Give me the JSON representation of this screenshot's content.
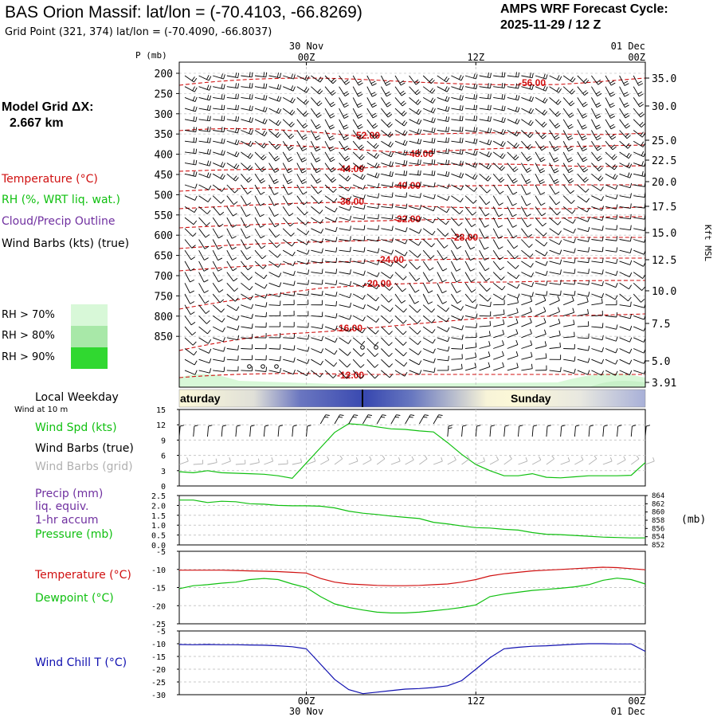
{
  "header": {
    "title": "BAS Orion Massif:  lat/lon = (-70.4103, -66.8269)",
    "subtitle": "Grid Point (321, 374) lat/lon = (-70.4090, -66.8037)",
    "cycle_label": "AMPS WRF Forecast Cycle:",
    "cycle_value": "2025-11-29 / 12  Z",
    "grid_label": "Model Grid ΔX:",
    "grid_value": "2.667 km"
  },
  "legend": {
    "temperature": "Temperature (°C)",
    "rh": "RH (%, WRT liq. wat.)",
    "cloud": "Cloud/Precip Outline",
    "wind": "Wind Barbs (kts) (true)",
    "rh70": "RH > 70%",
    "rh80": "RH > 80%",
    "rh90": "RH > 90%",
    "weekday": "Local Weekday",
    "wind10": "Wind at 10 m",
    "wspd": "Wind Spd (kts)",
    "wbarb_true": "Wind Barbs (true)",
    "wbarb_grid": "Wind Barbs (grid)",
    "precip1": "Precip (mm)",
    "precip2": "liq. equiv.",
    "precip3": "1-hr accum",
    "pressure": "Pressure (mb)",
    "temp2": "Temperature (°C)",
    "dew": "Dewpoint (°C)",
    "chill": "Wind Chill T (°C)"
  },
  "colors": {
    "temperature": "#d01010",
    "rh": "#10c010",
    "cloud": "#7030a0",
    "wind_grid": "#b0b0b0",
    "chill": "#1010b0",
    "rh70": "#d8f8d8",
    "rh80": "#a8e8a8",
    "rh90": "#30d830"
  },
  "chart_data": [
    {
      "type": "line",
      "panel": "cross-section",
      "ylabel": "P (mb)",
      "y2label": "Kft MSL",
      "x_ticks": [
        "00Z",
        "12Z",
        "00Z"
      ],
      "x_dates": [
        "30 Nov",
        "",
        "01 Dec"
      ],
      "p_ticks": [
        "200",
        "250",
        "300",
        "350",
        "400",
        "450",
        "500",
        "550",
        "600",
        "650",
        "700",
        "750",
        "800",
        "850"
      ],
      "kft_ticks": [
        "35.0",
        "30.0",
        "25.0",
        "22.5",
        "20.0",
        "17.5",
        "15.0",
        "12.5",
        "10.0",
        "7.5",
        "5.0",
        "3.91"
      ],
      "isotherm_labels": [
        "-56.00",
        "-52.00",
        "-48.00",
        "-44.00",
        "-40.00",
        "-36.00",
        "-32.00",
        "-28.00",
        "-24.00",
        "-20.00",
        "-16.00",
        "-12.00"
      ],
      "weekdays": [
        "aturday",
        "Sunday"
      ]
    },
    {
      "type": "line",
      "panel": "wind",
      "ylabel": "Wind Spd (kts)",
      "y_ticks": [
        "0",
        "3",
        "6",
        "9",
        "12",
        "15"
      ],
      "ylim": [
        0,
        15
      ],
      "x": [
        -9,
        -8,
        -7,
        -6,
        -5,
        -4,
        -3,
        -2,
        -1,
        0,
        1,
        2,
        3,
        4,
        5,
        6,
        7,
        8,
        9,
        10,
        11,
        12,
        13,
        14,
        15,
        16,
        17,
        18,
        19,
        20,
        21,
        22,
        23,
        24
      ],
      "series": [
        {
          "values": [
            2.8,
            2.6,
            3.0,
            2.6,
            2.5,
            2.4,
            2.3,
            2.0,
            1.5,
            4.5,
            7.5,
            10.5,
            12.2,
            12.0,
            11.6,
            11.2,
            11.1,
            10.8,
            10.6,
            8.5,
            6.2,
            4.2,
            3.0,
            2.0,
            2.0,
            2.4,
            1.7,
            1.6,
            1.8,
            2.0,
            2.0,
            2.0,
            2.1,
            4.6
          ]
        }
      ]
    },
    {
      "type": "line",
      "panel": "precip-pressure",
      "y_ticks": [
        "0.0",
        "0.5",
        "1.0",
        "1.5",
        "2.0",
        "2.5"
      ],
      "ylim": [
        0,
        2.5
      ],
      "y2label": "(mb)",
      "y2_ticks": [
        "852",
        "854",
        "856",
        "858",
        "860",
        "862",
        "864"
      ],
      "y2lim": [
        852,
        864
      ],
      "x": [
        -9,
        -8,
        -7,
        -6,
        -5,
        -4,
        -3,
        -2,
        -1,
        0,
        1,
        2,
        3,
        4,
        5,
        6,
        7,
        8,
        9,
        10,
        11,
        12,
        13,
        14,
        15,
        16,
        17,
        18,
        19,
        20,
        21,
        22,
        23,
        24
      ],
      "series": [
        {
          "values": [
            862.9,
            862.9,
            862.3,
            862.6,
            862.5,
            862.0,
            861.9,
            861.6,
            861.5,
            861.5,
            861.4,
            861.0,
            860.2,
            859.7,
            859.4,
            859.0,
            858.7,
            858.4,
            857.5,
            857.1,
            856.6,
            856.2,
            856.1,
            855.8,
            855.6,
            855.0,
            854.6,
            854.5,
            854.3,
            854.1,
            853.9,
            853.8,
            853.7,
            853.7
          ]
        }
      ]
    },
    {
      "type": "line",
      "panel": "temperature-dewpoint",
      "y_ticks": [
        "-5",
        "-10",
        "-15",
        "-20",
        "-25"
      ],
      "ylim": [
        -25,
        -5
      ],
      "x": [
        -9,
        -8,
        -7,
        -6,
        -5,
        -4,
        -3,
        -2,
        -1,
        0,
        1,
        2,
        3,
        4,
        5,
        6,
        7,
        8,
        9,
        10,
        11,
        12,
        13,
        14,
        15,
        16,
        17,
        18,
        19,
        20,
        21,
        22,
        23,
        24
      ],
      "series": [
        {
          "values": [
            -10.2,
            -10.2,
            -10.2,
            -10.2,
            -10.3,
            -10.4,
            -10.5,
            -10.6,
            -10.8,
            -11.0,
            -12.5,
            -13.5,
            -14.0,
            -14.2,
            -14.4,
            -14.5,
            -14.5,
            -14.4,
            -14.2,
            -14.0,
            -13.5,
            -12.8,
            -11.8,
            -11.2,
            -10.8,
            -10.4,
            -10.2,
            -10.0,
            -9.8,
            -9.6,
            -9.4,
            -9.5,
            -9.8,
            -10.1
          ]
        },
        {
          "values": [
            -15.3,
            -14.5,
            -14.2,
            -13.8,
            -13.5,
            -12.8,
            -12.5,
            -12.8,
            -14.0,
            -15.0,
            -17.5,
            -19.5,
            -20.5,
            -21.2,
            -21.8,
            -22.0,
            -22.0,
            -21.8,
            -21.4,
            -21.0,
            -20.5,
            -19.8,
            -17.5,
            -16.8,
            -16.3,
            -15.8,
            -15.5,
            -15.2,
            -14.8,
            -14.2,
            -13.0,
            -12.4,
            -12.8,
            -14.0
          ]
        }
      ]
    },
    {
      "type": "line",
      "panel": "wind-chill",
      "y_ticks": [
        "-5",
        "-10",
        "-15",
        "-20",
        "-25",
        "-30"
      ],
      "ylim": [
        -30,
        -5
      ],
      "x": [
        -9,
        -8,
        -7,
        -6,
        -5,
        -4,
        -3,
        -2,
        -1,
        0,
        1,
        2,
        3,
        4,
        5,
        6,
        7,
        8,
        9,
        10,
        11,
        12,
        13,
        14,
        15,
        16,
        17,
        18,
        19,
        20,
        21,
        22,
        23,
        24
      ],
      "series": [
        {
          "values": [
            -10.3,
            -10.4,
            -10.3,
            -10.4,
            -10.4,
            -10.5,
            -10.6,
            -10.8,
            -11.2,
            -12.0,
            -18.0,
            -24.0,
            -28.0,
            -29.6,
            -29.0,
            -28.4,
            -27.8,
            -27.6,
            -27.2,
            -26.5,
            -24.5,
            -20.0,
            -15.5,
            -12.0,
            -11.4,
            -11.0,
            -10.8,
            -10.5,
            -10.2,
            -10.0,
            -10.0,
            -10.1,
            -10.1,
            -13.0
          ]
        }
      ]
    }
  ]
}
